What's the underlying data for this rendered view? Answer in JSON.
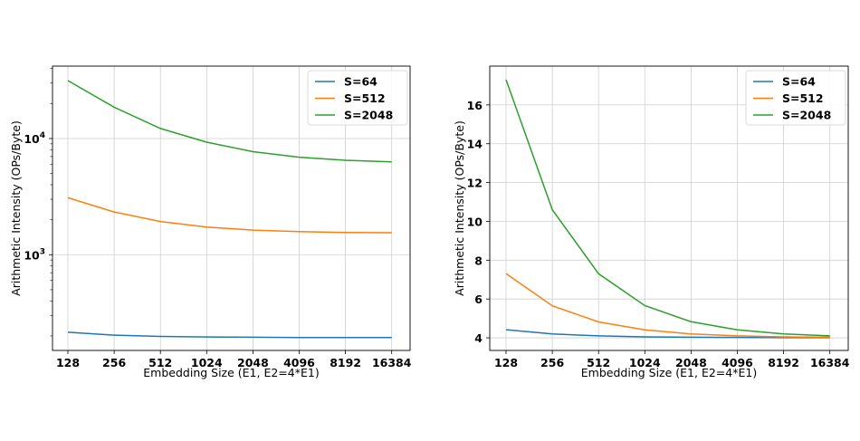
{
  "chart_data": [
    {
      "type": "line",
      "yscale": "log",
      "categories": [
        "128",
        "256",
        "512",
        "1024",
        "2048",
        "4096",
        "8192",
        "16384"
      ],
      "xlabel": "Embedding Size (E1, E2=4*E1)",
      "ylabel": "Arithmetic Intensity (OPs/Byte)",
      "ylim": [
        150,
        42000
      ],
      "yticks": [
        {
          "value": 1000,
          "base": "10",
          "exp": "3"
        },
        {
          "value": 10000,
          "base": "10",
          "exp": "4"
        }
      ],
      "grid": true,
      "legend_position": "top-right",
      "series": [
        {
          "name": "S=64",
          "color": "#1f77b4",
          "values": [
            215,
            203,
            198,
            196,
            195,
            194,
            194,
            194
          ]
        },
        {
          "name": "S=512",
          "color": "#ff7f0e",
          "values": [
            3090,
            2330,
            1930,
            1730,
            1630,
            1580,
            1555,
            1545
          ]
        },
        {
          "name": "S=2048",
          "color": "#2ca02c",
          "values": [
            31500,
            18600,
            12200,
            9300,
            7700,
            6900,
            6500,
            6300
          ]
        }
      ]
    },
    {
      "type": "line",
      "yscale": "linear",
      "categories": [
        "128",
        "256",
        "512",
        "1024",
        "2048",
        "4096",
        "8192",
        "16384"
      ],
      "xlabel": "Embedding Size (E1, E2=4*E1)",
      "ylabel": "Arithmetic Intensity (OPs/Byte)",
      "ylim": [
        3.35,
        18.0
      ],
      "yticks": [
        4,
        6,
        8,
        10,
        12,
        14,
        16
      ],
      "grid": true,
      "legend_position": "top-right",
      "series": [
        {
          "name": "S=64",
          "color": "#1f77b4",
          "values": [
            4.42,
            4.2,
            4.1,
            4.05,
            4.03,
            4.02,
            4.01,
            4.01
          ]
        },
        {
          "name": "S=512",
          "color": "#ff7f0e",
          "values": [
            7.31,
            5.65,
            4.82,
            4.41,
            4.2,
            4.1,
            4.05,
            4.03
          ]
        },
        {
          "name": "S=2048",
          "color": "#2ca02c",
          "values": [
            17.3,
            10.6,
            7.3,
            5.66,
            4.83,
            4.41,
            4.2,
            4.1
          ]
        }
      ]
    }
  ]
}
